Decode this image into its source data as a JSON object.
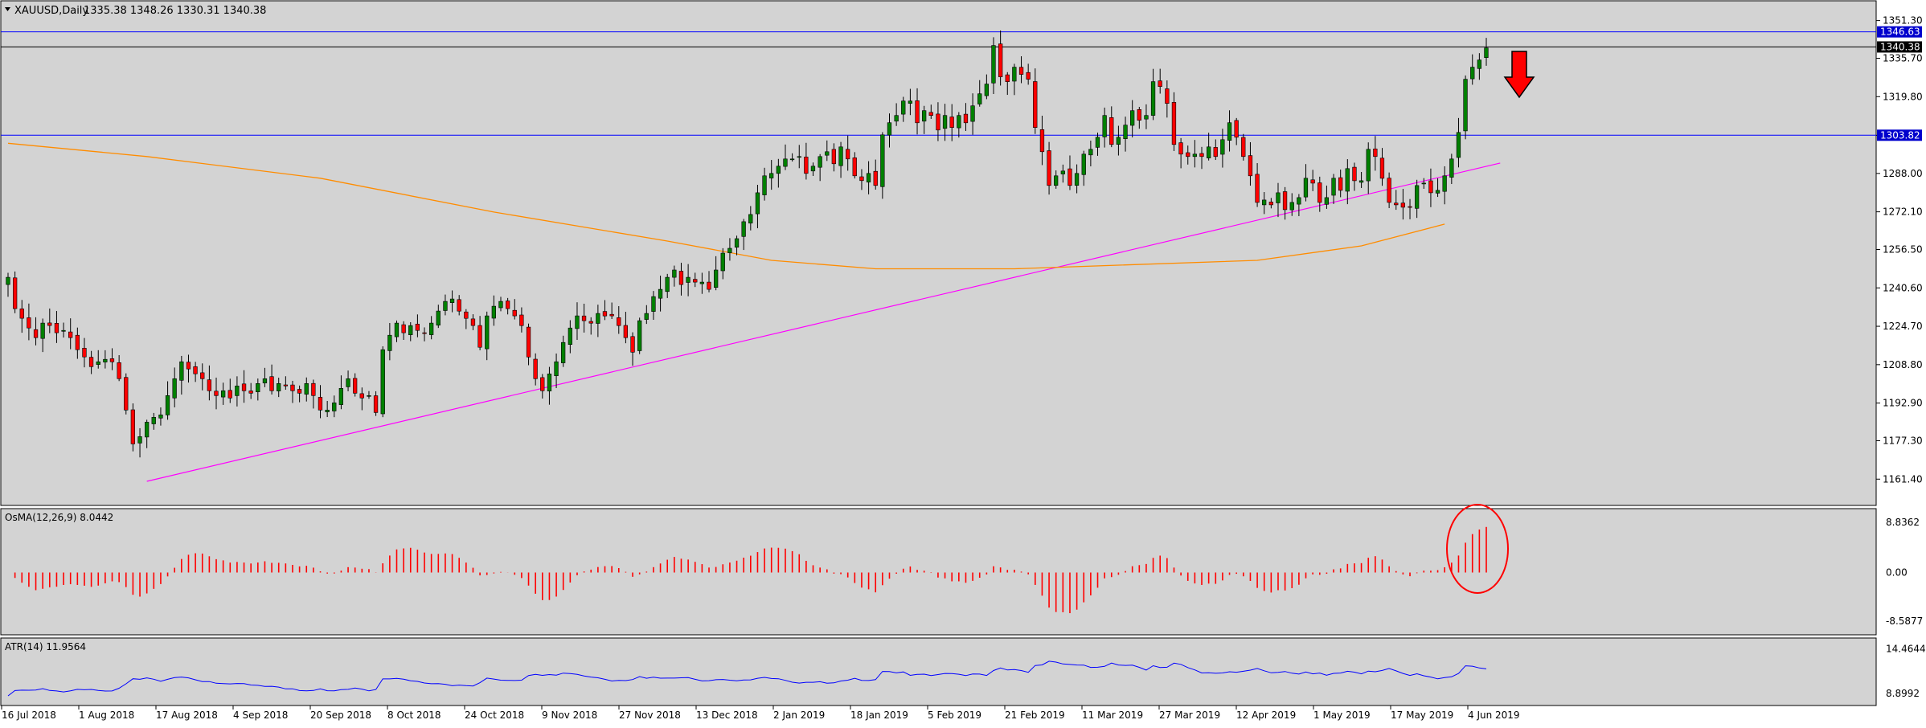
{
  "header": {
    "symbol": "XAUUSD,Daily",
    "ohlc": "1335.38 1348.26 1330.31 1340.38"
  },
  "colors": {
    "background": "#d3d3d3",
    "grid_frame": "#000000",
    "bull": "#008000",
    "bear": "#ff0000",
    "ma": "#ff8c00",
    "trendline": "#ff00ff",
    "hline": "#0000ff",
    "atr": "#0000ff",
    "osma": "#ff0000",
    "annotation": "#ff0000"
  },
  "chart_data": [
    {
      "type": "candlestick",
      "title": "XAUUSD,Daily",
      "ohlc_label": "1335.38 1348.26 1330.31 1340.38",
      "x_ticks": [
        "16 Jul 2018",
        "1 Aug 2018",
        "17 Aug 2018",
        "4 Sep 2018",
        "20 Sep 2018",
        "8 Oct 2018",
        "24 Oct 2018",
        "9 Nov 2018",
        "27 Nov 2018",
        "13 Dec 2018",
        "2 Jan 2019",
        "18 Jan 2019",
        "5 Feb 2019",
        "21 Feb 2019",
        "11 Mar 2019",
        "27 Mar 2019",
        "12 Apr 2019",
        "1 May 2019",
        "17 May 2019",
        "4 Jun 2019"
      ],
      "y_ticks": [
        "1351.30",
        "1335.70",
        "1319.80",
        "1303.80",
        "1288.00",
        "1272.10",
        "1256.50",
        "1240.60",
        "1224.70",
        "1208.80",
        "1192.90",
        "1177.30",
        "1161.40"
      ],
      "ylim": [
        1156.5,
        1354.5
      ],
      "price_labels": [
        {
          "value": 1346.63,
          "text": "1346.63"
        },
        {
          "value": 1340.38,
          "text": "1340.38"
        },
        {
          "value": 1303.82,
          "text": "1303.82"
        }
      ],
      "horizontal_lines": [
        1346.63,
        1340.38,
        1303.82
      ],
      "trendline": {
        "from": {
          "x": 20,
          "y": 1160.5
        },
        "to": {
          "x": 215,
          "y": 1292.3
        }
      },
      "moving_average_points": [
        [
          0,
          1300.5
        ],
        [
          20,
          1295
        ],
        [
          45,
          1286
        ],
        [
          70,
          1272
        ],
        [
          95,
          1260
        ],
        [
          110,
          1252
        ],
        [
          125,
          1248.5
        ],
        [
          145,
          1248.5
        ],
        [
          160,
          1250
        ],
        [
          180,
          1252
        ],
        [
          195,
          1258
        ],
        [
          207,
          1267
        ]
      ],
      "closes": [
        1245,
        1232,
        1228,
        1224,
        1220,
        1226,
        1225,
        1222,
        1223,
        1220,
        1215,
        1212,
        1208,
        1210,
        1211,
        1210,
        1203,
        1190,
        1176,
        1179,
        1185,
        1187,
        1188,
        1196,
        1203,
        1210,
        1207,
        1205,
        1203,
        1198,
        1196,
        1198,
        1195,
        1200,
        1198,
        1197,
        1201,
        1203,
        1198,
        1201,
        1200,
        1198,
        1197,
        1201,
        1196,
        1190,
        1190,
        1193,
        1199,
        1203,
        1197,
        1195,
        1196,
        1189,
        1215,
        1221,
        1226,
        1222,
        1225,
        1223,
        1222,
        1226,
        1231,
        1235,
        1236,
        1231,
        1228,
        1225,
        1216,
        1229,
        1233,
        1235,
        1232,
        1229,
        1225,
        1212,
        1203,
        1198,
        1205,
        1210,
        1218,
        1224,
        1229,
        1227,
        1226,
        1230,
        1229,
        1229,
        1225,
        1220,
        1214,
        1227,
        1230,
        1237,
        1240,
        1245,
        1248,
        1242,
        1245,
        1243,
        1243,
        1240,
        1248,
        1255,
        1257,
        1261,
        1268,
        1271,
        1280,
        1287,
        1288,
        1291,
        1294,
        1294,
        1295,
        1288,
        1291,
        1295,
        1297,
        1292,
        1299,
        1294,
        1287,
        1285,
        1288,
        1283,
        1304,
        1309,
        1312,
        1318,
        1318,
        1309,
        1314,
        1312,
        1306,
        1312,
        1307,
        1312,
        1309,
        1316,
        1321,
        1325,
        1341,
        1328,
        1326,
        1332,
        1329,
        1327,
        1307,
        1297,
        1283,
        1287,
        1289,
        1283,
        1288,
        1296,
        1298,
        1303,
        1312,
        1300,
        1303,
        1308,
        1314,
        1310,
        1312,
        1326,
        1324,
        1317,
        1300,
        1296,
        1295,
        1296,
        1295,
        1299,
        1295,
        1302,
        1309,
        1303,
        1295,
        1287,
        1276,
        1277,
        1275,
        1280,
        1273,
        1276,
        1278,
        1286,
        1284,
        1276,
        1278,
        1286,
        1281,
        1290,
        1285,
        1285,
        1298,
        1295,
        1286,
        1276,
        1275,
        1274,
        1274,
        1283,
        1284,
        1280,
        1281,
        1287,
        1294,
        1305,
        1327,
        1332,
        1335,
        1340
      ],
      "panels": [
        {
          "name": "OsMA(12,26,9)",
          "label": "OsMA(12,26,9) 8.0442",
          "value": 8.0442,
          "y_ticks": [
            "8.8362",
            "0.00",
            "-8.5877"
          ],
          "ylim": [
            -10.0,
            10.0
          ]
        },
        {
          "name": "ATR(14)",
          "label": "ATR(14) 11.9564",
          "value": 11.9564,
          "y_ticks": [
            "14.4644",
            "8.8992"
          ],
          "ylim": [
            8.0,
            15.2
          ]
        }
      ]
    }
  ]
}
